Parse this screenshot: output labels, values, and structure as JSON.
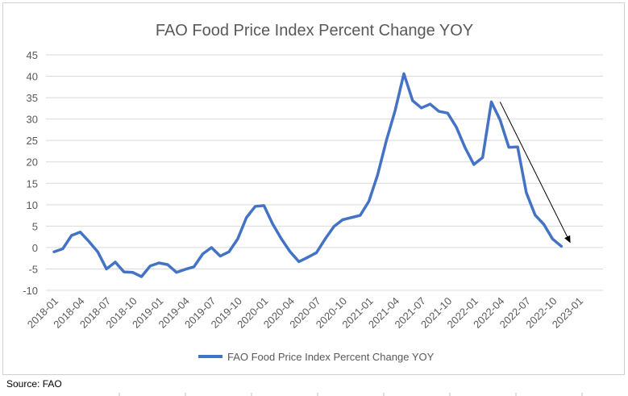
{
  "chart_data": {
    "type": "line",
    "title": "FAO Food Price Index Percent Change YOY",
    "xlabel": "",
    "ylabel": "",
    "ylim": [
      -10,
      45
    ],
    "yticks": [
      -10,
      -5,
      0,
      5,
      10,
      15,
      20,
      25,
      30,
      35,
      40,
      45
    ],
    "x_tick_labels": [
      "2018-01",
      "2018-04",
      "2018-07",
      "2018-10",
      "2019-01",
      "2019-04",
      "2019-07",
      "2019-10",
      "2020-01",
      "2020-04",
      "2020-07",
      "2020-10",
      "2021-01",
      "2021-04",
      "2021-07",
      "2021-10",
      "2022-01",
      "2022-04",
      "2022-07",
      "2022-10",
      "2023-01"
    ],
    "x": [
      "2018-01",
      "2018-02",
      "2018-03",
      "2018-04",
      "2018-05",
      "2018-06",
      "2018-07",
      "2018-08",
      "2018-09",
      "2018-10",
      "2018-11",
      "2018-12",
      "2019-01",
      "2019-02",
      "2019-03",
      "2019-04",
      "2019-05",
      "2019-06",
      "2019-07",
      "2019-08",
      "2019-09",
      "2019-10",
      "2019-11",
      "2019-12",
      "2020-01",
      "2020-02",
      "2020-03",
      "2020-04",
      "2020-05",
      "2020-06",
      "2020-07",
      "2020-08",
      "2020-09",
      "2020-10",
      "2020-11",
      "2020-12",
      "2021-01",
      "2021-02",
      "2021-03",
      "2021-04",
      "2021-05",
      "2021-06",
      "2021-07",
      "2021-08",
      "2021-09",
      "2021-10",
      "2021-11",
      "2021-12",
      "2022-01",
      "2022-02",
      "2022-03",
      "2022-04",
      "2022-05",
      "2022-06",
      "2022-07",
      "2022-08",
      "2022-09",
      "2022-10",
      "2022-11"
    ],
    "series": [
      {
        "name": "FAO Food Price Index Percent Change YOY",
        "color": "#4472c4",
        "values": [
          -1.0,
          -0.3,
          2.8,
          3.6,
          1.4,
          -1.0,
          -5.0,
          -3.4,
          -5.7,
          -5.8,
          -6.8,
          -4.3,
          -3.6,
          -4.0,
          -5.8,
          -5.1,
          -4.5,
          -1.5,
          0.0,
          -2.0,
          -1.0,
          2.0,
          7.0,
          9.6,
          9.8,
          5.5,
          2.0,
          -1.0,
          -3.3,
          -2.3,
          -1.2,
          2.0,
          4.9,
          6.5,
          7.0,
          7.5,
          10.8,
          17.0,
          25.0,
          32.0,
          40.6,
          34.3,
          32.6,
          33.5,
          31.8,
          31.4,
          28.1,
          23.3,
          19.4,
          21.0,
          34.0,
          29.8,
          23.4,
          23.5,
          12.8,
          7.6,
          5.4,
          2.0,
          0.3
        ]
      }
    ],
    "annotations": [
      {
        "type": "arrow",
        "from": {
          "x": "2022-04",
          "y": 34.0
        },
        "to": {
          "x": "2022-12",
          "y": 1.2
        },
        "color": "#000000"
      }
    ],
    "grid": true,
    "legend": "bottom"
  },
  "source_text": "Source: FAO"
}
